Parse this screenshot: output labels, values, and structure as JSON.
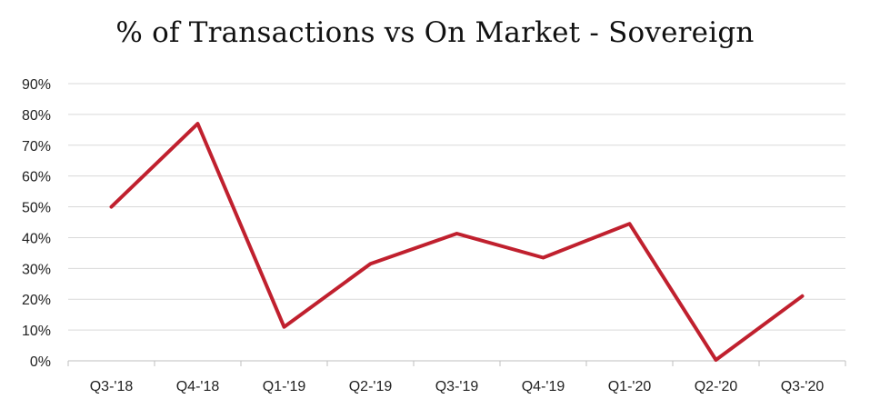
{
  "chart_data": {
    "type": "line",
    "title": "% of Transactions vs On Market - Sovereign",
    "xlabel": "",
    "ylabel": "",
    "categories": [
      "Q3-'18",
      "Q4-'18",
      "Q1-'19",
      "Q2-'19",
      "Q3-'19",
      "Q4-'19",
      "Q1-'20",
      "Q2-'20",
      "Q3-'20"
    ],
    "series": [
      {
        "values": [
          50,
          77,
          11,
          31.5,
          41.3,
          33.5,
          44.5,
          0.3,
          21
        ],
        "color": "#c0202e"
      }
    ],
    "ylim": [
      0,
      90
    ],
    "yticks": [
      0,
      10,
      20,
      30,
      40,
      50,
      60,
      70,
      80,
      90
    ],
    "ytick_labels": [
      "0%",
      "10%",
      "20%",
      "30%",
      "40%",
      "50%",
      "60%",
      "70%",
      "80%",
      "90%"
    ],
    "grid": true,
    "legend": "none",
    "colors": {
      "grid": "#d9d9d9",
      "axis": "#bfbfbf",
      "text": "#222222"
    }
  }
}
